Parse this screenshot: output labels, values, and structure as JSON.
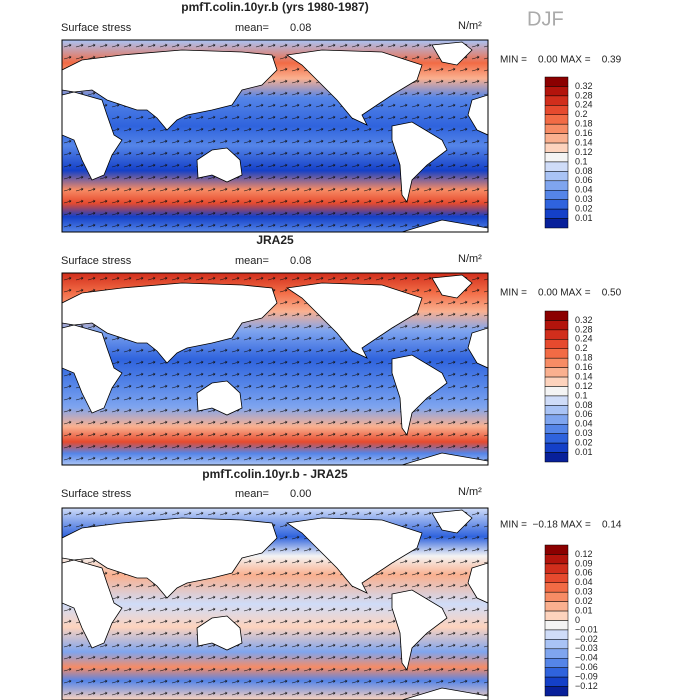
{
  "header": {
    "season": "DJF"
  },
  "panels": [
    {
      "title": "pmfT.colin.10yr.b (yrs 1980-1987)",
      "variable": "Surface stress",
      "mean_label": "mean=",
      "mean": "0.08",
      "units": "N/m²",
      "min_max": "MIN =    0.00 MAX =    0.39",
      "colorbar_labels": [
        "0.32",
        "0.28",
        "0.24",
        "0.2",
        "0.18",
        "0.16",
        "0.14",
        "0.12",
        "0.1",
        "0.08",
        "0.06",
        "0.04",
        "0.03",
        "0.02",
        "0.01"
      ],
      "colors": [
        "#8b0000",
        "#b3140c",
        "#d12e1c",
        "#e64a2e",
        "#f26b45",
        "#f78c65",
        "#fab08f",
        "#fdd3bd",
        "#f4f4f4",
        "#cfdcf8",
        "#a9c3f5",
        "#7fa5ef",
        "#5585e8",
        "#2f63dd",
        "#1440c8",
        "#08209a"
      ]
    },
    {
      "title": "JRA25",
      "variable": "Surface stress",
      "mean_label": "mean=",
      "mean": "0.08",
      "units": "N/m²",
      "min_max": "MIN =    0.00 MAX =    0.50",
      "colorbar_labels": [
        "0.32",
        "0.28",
        "0.24",
        "0.2",
        "0.18",
        "0.16",
        "0.14",
        "0.12",
        "0.1",
        "0.08",
        "0.06",
        "0.04",
        "0.03",
        "0.02",
        "0.01"
      ],
      "colors": [
        "#8b0000",
        "#b3140c",
        "#d12e1c",
        "#e64a2e",
        "#f26b45",
        "#f78c65",
        "#fab08f",
        "#fdd3bd",
        "#f4f4f4",
        "#cfdcf8",
        "#a9c3f5",
        "#7fa5ef",
        "#5585e8",
        "#2f63dd",
        "#1440c8",
        "#08209a"
      ]
    },
    {
      "title": "pmfT.colin.10yr.b - JRA25",
      "variable": "Surface stress",
      "mean_label": "mean=",
      "mean": "0.00",
      "units": "N/m²",
      "min_max": "MIN =  −0.18 MAX =    0.14",
      "colorbar_labels": [
        "0.12",
        "0.09",
        "0.06",
        "0.04",
        "0.03",
        "0.02",
        "0.01",
        "0",
        "−0.01",
        "−0.02",
        "−0.03",
        "−0.04",
        "−0.06",
        "−0.09",
        "−0.12"
      ],
      "colors": [
        "#8b0000",
        "#b3140c",
        "#d12e1c",
        "#e64a2e",
        "#f26b45",
        "#f78c65",
        "#fab08f",
        "#fdd3bd",
        "#f4f4f4",
        "#cfdcf8",
        "#a9c3f5",
        "#7fa5ef",
        "#5585e8",
        "#2f63dd",
        "#1440c8",
        "#08209a"
      ]
    }
  ]
}
